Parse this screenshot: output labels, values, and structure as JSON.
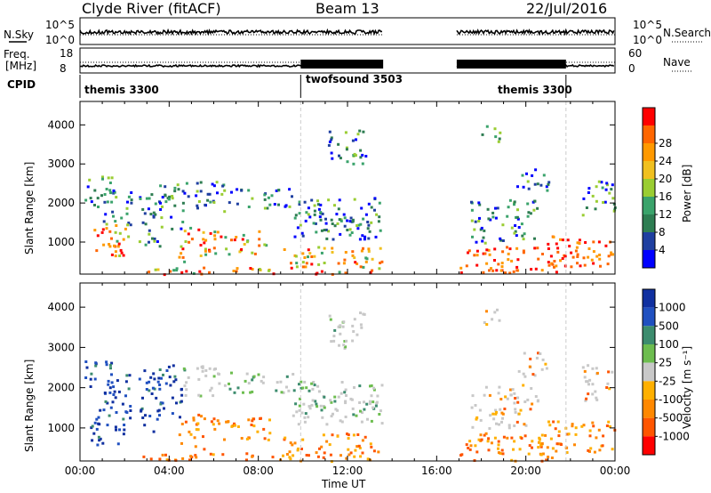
{
  "header": {
    "title": "Clyde River (fitACF)",
    "beam": "Beam 13",
    "date": "22/Jul/2016"
  },
  "summary": {
    "nsky_label": "N.Sky",
    "nsky_ticks": [
      "10^5",
      "10^0"
    ],
    "nsearch_label": "N.Search",
    "nsearch_ticks": [
      "10^5",
      "10^0"
    ],
    "freq_label": "Freq.",
    "freq_unit": "[MHz]",
    "freq_ticks": [
      "18",
      "8"
    ],
    "nave_label": "Nave",
    "nave_ticks": [
      "60",
      "0"
    ],
    "cpid_label": "CPID",
    "cpid_segments": [
      "themis 3300",
      "twofsound 3503",
      "themis 3300"
    ]
  },
  "colors": {
    "power": [
      "#0000ff",
      "#1f3fa0",
      "#2e7d52",
      "#3aa36b",
      "#9acd32",
      "#f0c020",
      "#ff9900",
      "#ff6600",
      "#ff0000"
    ],
    "velocity": [
      "#1030a0",
      "#2050c0",
      "#3c8c6e",
      "#6dbd4f",
      "#c8c8c8",
      "#ffb000",
      "#ff8800",
      "#ff5500",
      "#ff0000"
    ]
  },
  "chart_data": [
    {
      "type": "heatmap",
      "panel": "power",
      "ylabel": "Slant Range [km]",
      "xlabel": "Time UT",
      "xticks": [
        "00:00",
        "04:00",
        "08:00",
        "12:00",
        "16:00",
        "20:00",
        "00:00"
      ],
      "yticks": [
        "1000",
        "2000",
        "3000",
        "4000"
      ],
      "xlim": [
        0,
        24
      ],
      "ylim": [
        180,
        4600
      ],
      "colorbar_label": "Power [dB]",
      "colorbar_ticks": [
        "4",
        "8",
        "12",
        "16",
        "20",
        "24",
        "28"
      ],
      "data_gap_hours": [
        13.6,
        16.9
      ],
      "cpid_change_hours": [
        9.9,
        21.8
      ]
    },
    {
      "type": "heatmap",
      "panel": "velocity",
      "ylabel": "Slant Range [km]",
      "xlabel": "Time UT",
      "xticks": [
        "00:00",
        "04:00",
        "08:00",
        "12:00",
        "16:00",
        "20:00",
        "00:00"
      ],
      "yticks": [
        "1000",
        "2000",
        "3000",
        "4000"
      ],
      "xlim": [
        0,
        24
      ],
      "ylim": [
        180,
        4600
      ],
      "colorbar_label": "Velocity [m s⁻¹]",
      "colorbar_ticks": [
        "1000",
        "500",
        "100",
        "25",
        "-25",
        "-100",
        "-500",
        "-1000"
      ],
      "data_gap_hours": [
        13.6,
        16.9
      ],
      "cpid_change_hours": [
        9.9,
        21.8
      ]
    }
  ]
}
